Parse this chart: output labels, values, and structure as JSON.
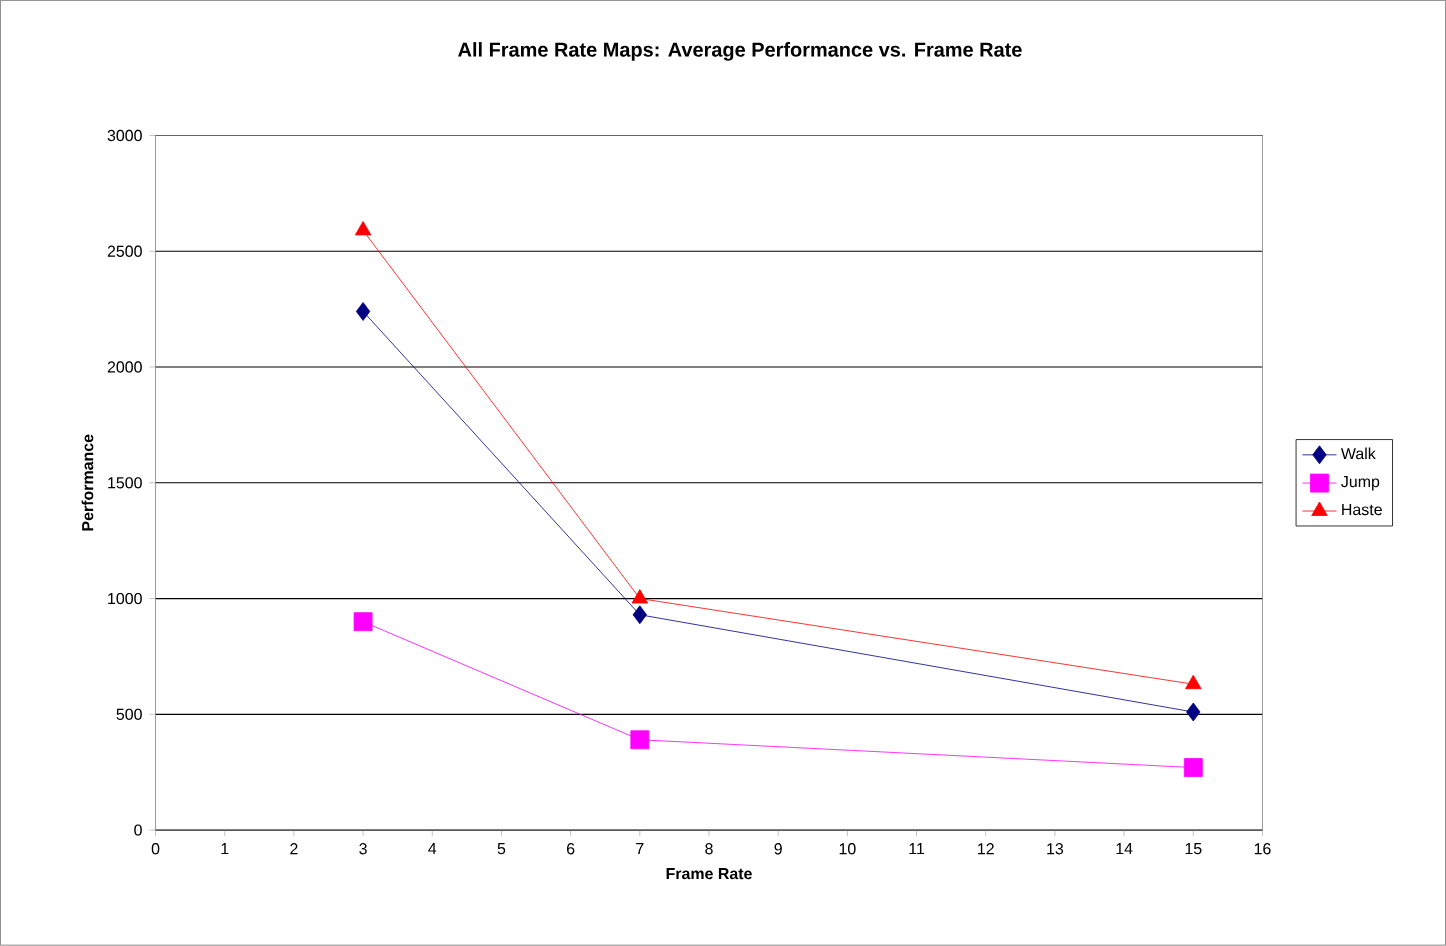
{
  "chart_data": {
    "type": "line",
    "title": "All Frame Rate Maps: Average Performance vs. Frame Rate",
    "xlabel": "Frame Rate",
    "ylabel": "Performance",
    "x": [
      3,
      7,
      15
    ],
    "series": [
      {
        "name": "Walk",
        "color": "#000080",
        "marker": "diamond",
        "values": [
          2240,
          930,
          510
        ]
      },
      {
        "name": "Jump",
        "color": "#ff00ff",
        "marker": "square",
        "values": [
          900,
          390,
          270
        ]
      },
      {
        "name": "Haste",
        "color": "#ff0000",
        "marker": "triangle",
        "values": [
          2590,
          1000,
          630
        ]
      }
    ],
    "xlim": [
      0,
      16
    ],
    "xticks": [
      0,
      1,
      2,
      3,
      4,
      5,
      6,
      7,
      8,
      9,
      10,
      11,
      12,
      13,
      14,
      15,
      16
    ],
    "ylim": [
      0,
      3000
    ],
    "yticks": [
      0,
      500,
      1000,
      1500,
      2000,
      2500,
      3000
    ],
    "grid": "y",
    "legend": "right",
    "line_style": "solid"
  }
}
